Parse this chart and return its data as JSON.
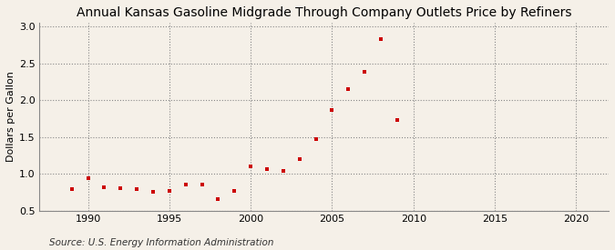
{
  "title": "Annual Kansas Gasoline Midgrade Through Company Outlets Price by Refiners",
  "ylabel": "Dollars per Gallon",
  "source": "Source: U.S. Energy Information Administration",
  "background_color": "#f5f0e8",
  "marker_color": "#cc0000",
  "years": [
    1989,
    1990,
    1991,
    1992,
    1993,
    1994,
    1995,
    1996,
    1997,
    1998,
    1999,
    2000,
    2001,
    2002,
    2003,
    2004,
    2005,
    2006,
    2007,
    2008,
    2009
  ],
  "values": [
    0.79,
    0.94,
    0.82,
    0.81,
    0.79,
    0.76,
    0.77,
    0.85,
    0.86,
    0.66,
    0.77,
    1.1,
    1.06,
    1.04,
    1.2,
    1.47,
    1.87,
    2.15,
    2.38,
    2.83,
    1.73
  ],
  "xlim": [
    1987,
    2022
  ],
  "ylim": [
    0.5,
    3.05
  ],
  "xticks": [
    1990,
    1995,
    2000,
    2005,
    2010,
    2015,
    2020
  ],
  "yticks": [
    0.5,
    1.0,
    1.5,
    2.0,
    2.5,
    3.0
  ],
  "title_fontsize": 10,
  "label_fontsize": 8,
  "tick_fontsize": 8,
  "source_fontsize": 7.5
}
